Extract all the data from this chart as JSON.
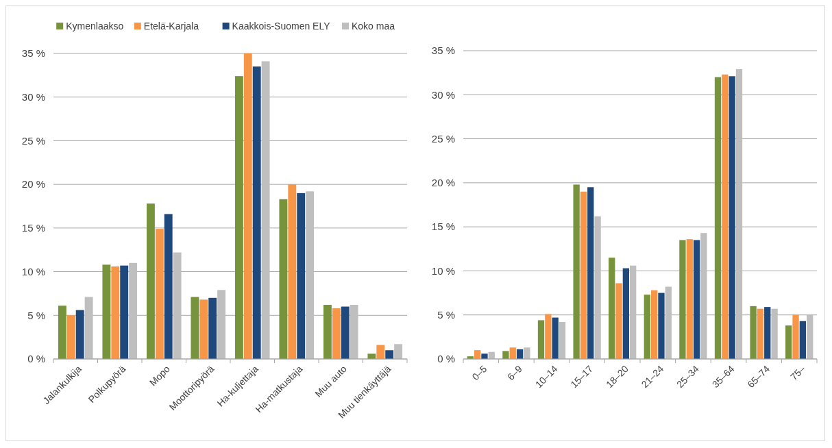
{
  "chart_data": [
    {
      "type": "bar",
      "categories": [
        "Jalankulkija",
        "Polkupyörä",
        "Mopo",
        "Moottoripyörä",
        "Ha-kuljettaja",
        "Ha-matkustaja",
        "Muu auto",
        "Muu tienkäyttäjä"
      ],
      "series": [
        {
          "name": "Kymenlaakso",
          "color": "#77933c",
          "values": [
            6.1,
            10.8,
            17.8,
            7.1,
            32.4,
            18.3,
            6.2,
            0.6
          ]
        },
        {
          "name": "Etelä-Karjala",
          "color": "#f79646",
          "values": [
            5.0,
            10.6,
            14.9,
            6.8,
            35.0,
            20.0,
            5.8,
            1.6
          ]
        },
        {
          "name": "Kaakkois-Suomen ELY",
          "color": "#1f497d",
          "values": [
            5.6,
            10.7,
            16.6,
            7.0,
            33.5,
            19.0,
            6.0,
            1.0
          ]
        },
        {
          "name": "Koko maa",
          "color": "#bfbfbf",
          "values": [
            7.1,
            11.0,
            12.2,
            7.9,
            34.1,
            19.2,
            6.2,
            1.7
          ]
        }
      ],
      "ylim": [
        0,
        35
      ],
      "yticks": [
        {
          "value": 0,
          "label": "0 %"
        },
        {
          "value": 5,
          "label": "5 %"
        },
        {
          "value": 10,
          "label": "10 %"
        },
        {
          "value": 15,
          "label": "15 %"
        },
        {
          "value": 20,
          "label": "20 %"
        },
        {
          "value": 25,
          "label": "25 %"
        },
        {
          "value": 30,
          "label": "30 %"
        },
        {
          "value": 35,
          "label": "35 %"
        }
      ],
      "grid": "y",
      "legend": "top"
    },
    {
      "type": "bar",
      "categories": [
        "0–5",
        "6–9",
        "10–14",
        "15–17",
        "18–20",
        "21–24",
        "25–34",
        "35–64",
        "65–74",
        "75–"
      ],
      "series": [
        {
          "color": "#77933c",
          "values": [
            0.3,
            0.9,
            4.4,
            19.8,
            11.5,
            7.3,
            13.5,
            32.0,
            6.0,
            3.8
          ]
        },
        {
          "color": "#f79646",
          "values": [
            1.0,
            1.3,
            5.1,
            19.0,
            8.6,
            7.8,
            13.6,
            32.3,
            5.7,
            5.0
          ]
        },
        {
          "color": "#1f497d",
          "values": [
            0.6,
            1.1,
            4.7,
            19.5,
            10.3,
            7.5,
            13.5,
            32.1,
            5.9,
            4.3
          ]
        },
        {
          "color": "#bfbfbf",
          "values": [
            0.8,
            1.3,
            4.2,
            16.2,
            10.6,
            8.2,
            14.3,
            32.9,
            5.7,
            5.0
          ]
        }
      ],
      "ylim": [
        0,
        35
      ],
      "yticks": [
        {
          "value": 0,
          "label": "0 %"
        },
        {
          "value": 5,
          "label": "5 %"
        },
        {
          "value": 10,
          "label": "10 %"
        },
        {
          "value": 15,
          "label": "15 %"
        },
        {
          "value": 20,
          "label": "20 %"
        },
        {
          "value": 25,
          "label": "25 %"
        },
        {
          "value": 30,
          "label": "30 %"
        },
        {
          "value": 35,
          "label": "35 %"
        }
      ],
      "grid": "y"
    }
  ]
}
